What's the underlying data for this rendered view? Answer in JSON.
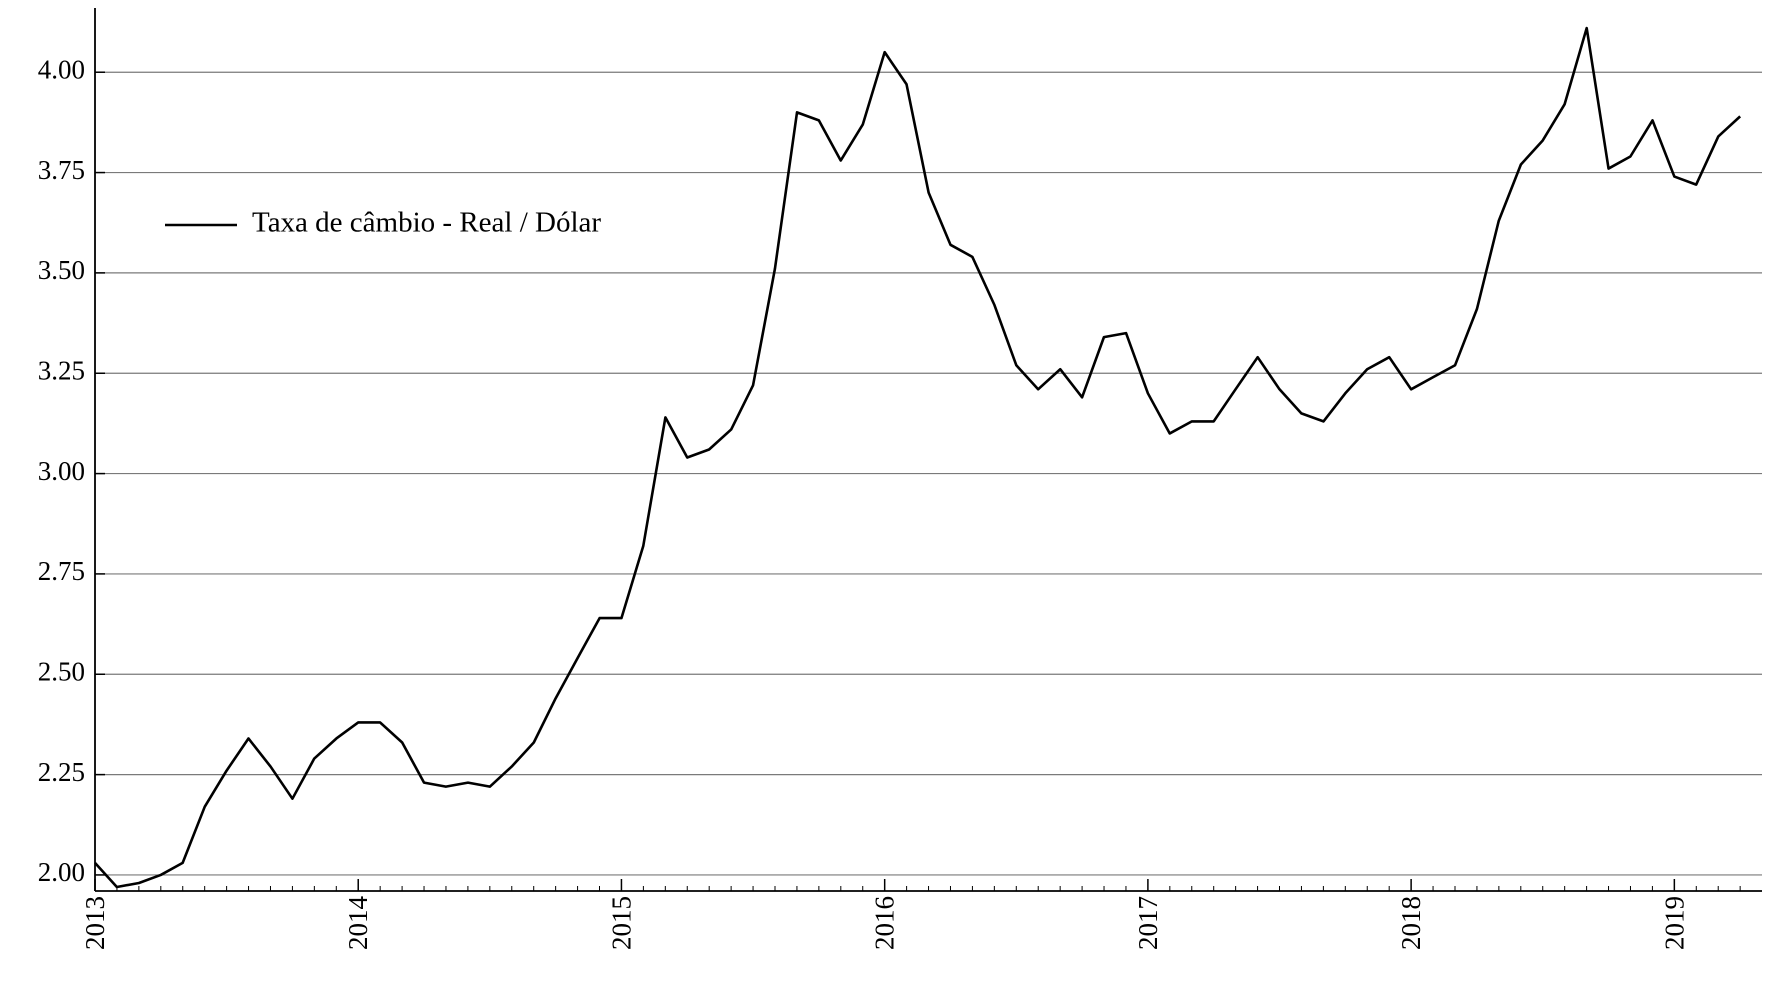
{
  "chart_data": {
    "type": "line",
    "title": "",
    "xlabel": "",
    "ylabel": "",
    "xlim": [
      2013.0,
      2019.333
    ],
    "ylim": [
      1.96,
      4.16
    ],
    "grid": true,
    "legend_position": "top-left",
    "y_ticks": [
      {
        "value": 2.0,
        "label": "2.00"
      },
      {
        "value": 2.25,
        "label": "2.25"
      },
      {
        "value": 2.5,
        "label": "2.50"
      },
      {
        "value": 2.75,
        "label": "2.75"
      },
      {
        "value": 3.0,
        "label": "3.00"
      },
      {
        "value": 3.25,
        "label": "3.25"
      },
      {
        "value": 3.5,
        "label": "3.50"
      },
      {
        "value": 3.75,
        "label": "3.75"
      },
      {
        "value": 4.0,
        "label": "4.00"
      }
    ],
    "x_ticks": [
      {
        "value": 2013,
        "label": "2013"
      },
      {
        "value": 2014,
        "label": "2014"
      },
      {
        "value": 2015,
        "label": "2015"
      },
      {
        "value": 2016,
        "label": "2016"
      },
      {
        "value": 2017,
        "label": "2017"
      },
      {
        "value": 2018,
        "label": "2018"
      },
      {
        "value": 2019,
        "label": "2019"
      }
    ],
    "series": [
      {
        "name": "Taxa de câmbio - Real / Dólar",
        "color": "#000000",
        "x": [
          2013.0,
          2013.083,
          2013.167,
          2013.25,
          2013.333,
          2013.417,
          2013.5,
          2013.583,
          2013.667,
          2013.75,
          2013.833,
          2013.917,
          2014.0,
          2014.083,
          2014.167,
          2014.25,
          2014.333,
          2014.417,
          2014.5,
          2014.583,
          2014.667,
          2014.75,
          2014.833,
          2014.917,
          2015.0,
          2015.083,
          2015.167,
          2015.25,
          2015.333,
          2015.417,
          2015.5,
          2015.583,
          2015.667,
          2015.75,
          2015.833,
          2015.917,
          2016.0,
          2016.083,
          2016.167,
          2016.25,
          2016.333,
          2016.417,
          2016.5,
          2016.583,
          2016.667,
          2016.75,
          2016.833,
          2016.917,
          2017.0,
          2017.083,
          2017.167,
          2017.25,
          2017.333,
          2017.417,
          2017.5,
          2017.583,
          2017.667,
          2017.75,
          2017.833,
          2017.917,
          2018.0,
          2018.083,
          2018.167,
          2018.25,
          2018.333,
          2018.417,
          2018.5,
          2018.583,
          2018.667,
          2018.75,
          2018.833,
          2018.917,
          2019.0,
          2019.083,
          2019.167,
          2019.25
        ],
        "y": [
          2.03,
          1.97,
          1.98,
          2.0,
          2.03,
          2.17,
          2.26,
          2.34,
          2.27,
          2.19,
          2.29,
          2.34,
          2.38,
          2.38,
          2.33,
          2.23,
          2.22,
          2.23,
          2.22,
          2.27,
          2.33,
          2.44,
          2.54,
          2.64,
          2.64,
          2.82,
          3.14,
          3.04,
          3.06,
          3.11,
          3.22,
          3.51,
          3.9,
          3.88,
          3.78,
          3.87,
          4.05,
          3.97,
          3.7,
          3.57,
          3.54,
          3.42,
          3.27,
          3.21,
          3.26,
          3.19,
          3.34,
          3.35,
          3.2,
          3.1,
          3.13,
          3.13,
          3.21,
          3.29,
          3.21,
          3.15,
          3.13,
          3.2,
          3.26,
          3.29,
          3.21,
          3.24,
          3.27,
          3.41,
          3.63,
          3.77,
          3.83,
          3.92,
          4.11,
          3.76,
          3.79,
          3.88,
          3.74,
          3.72,
          3.84,
          3.89
        ]
      }
    ]
  }
}
